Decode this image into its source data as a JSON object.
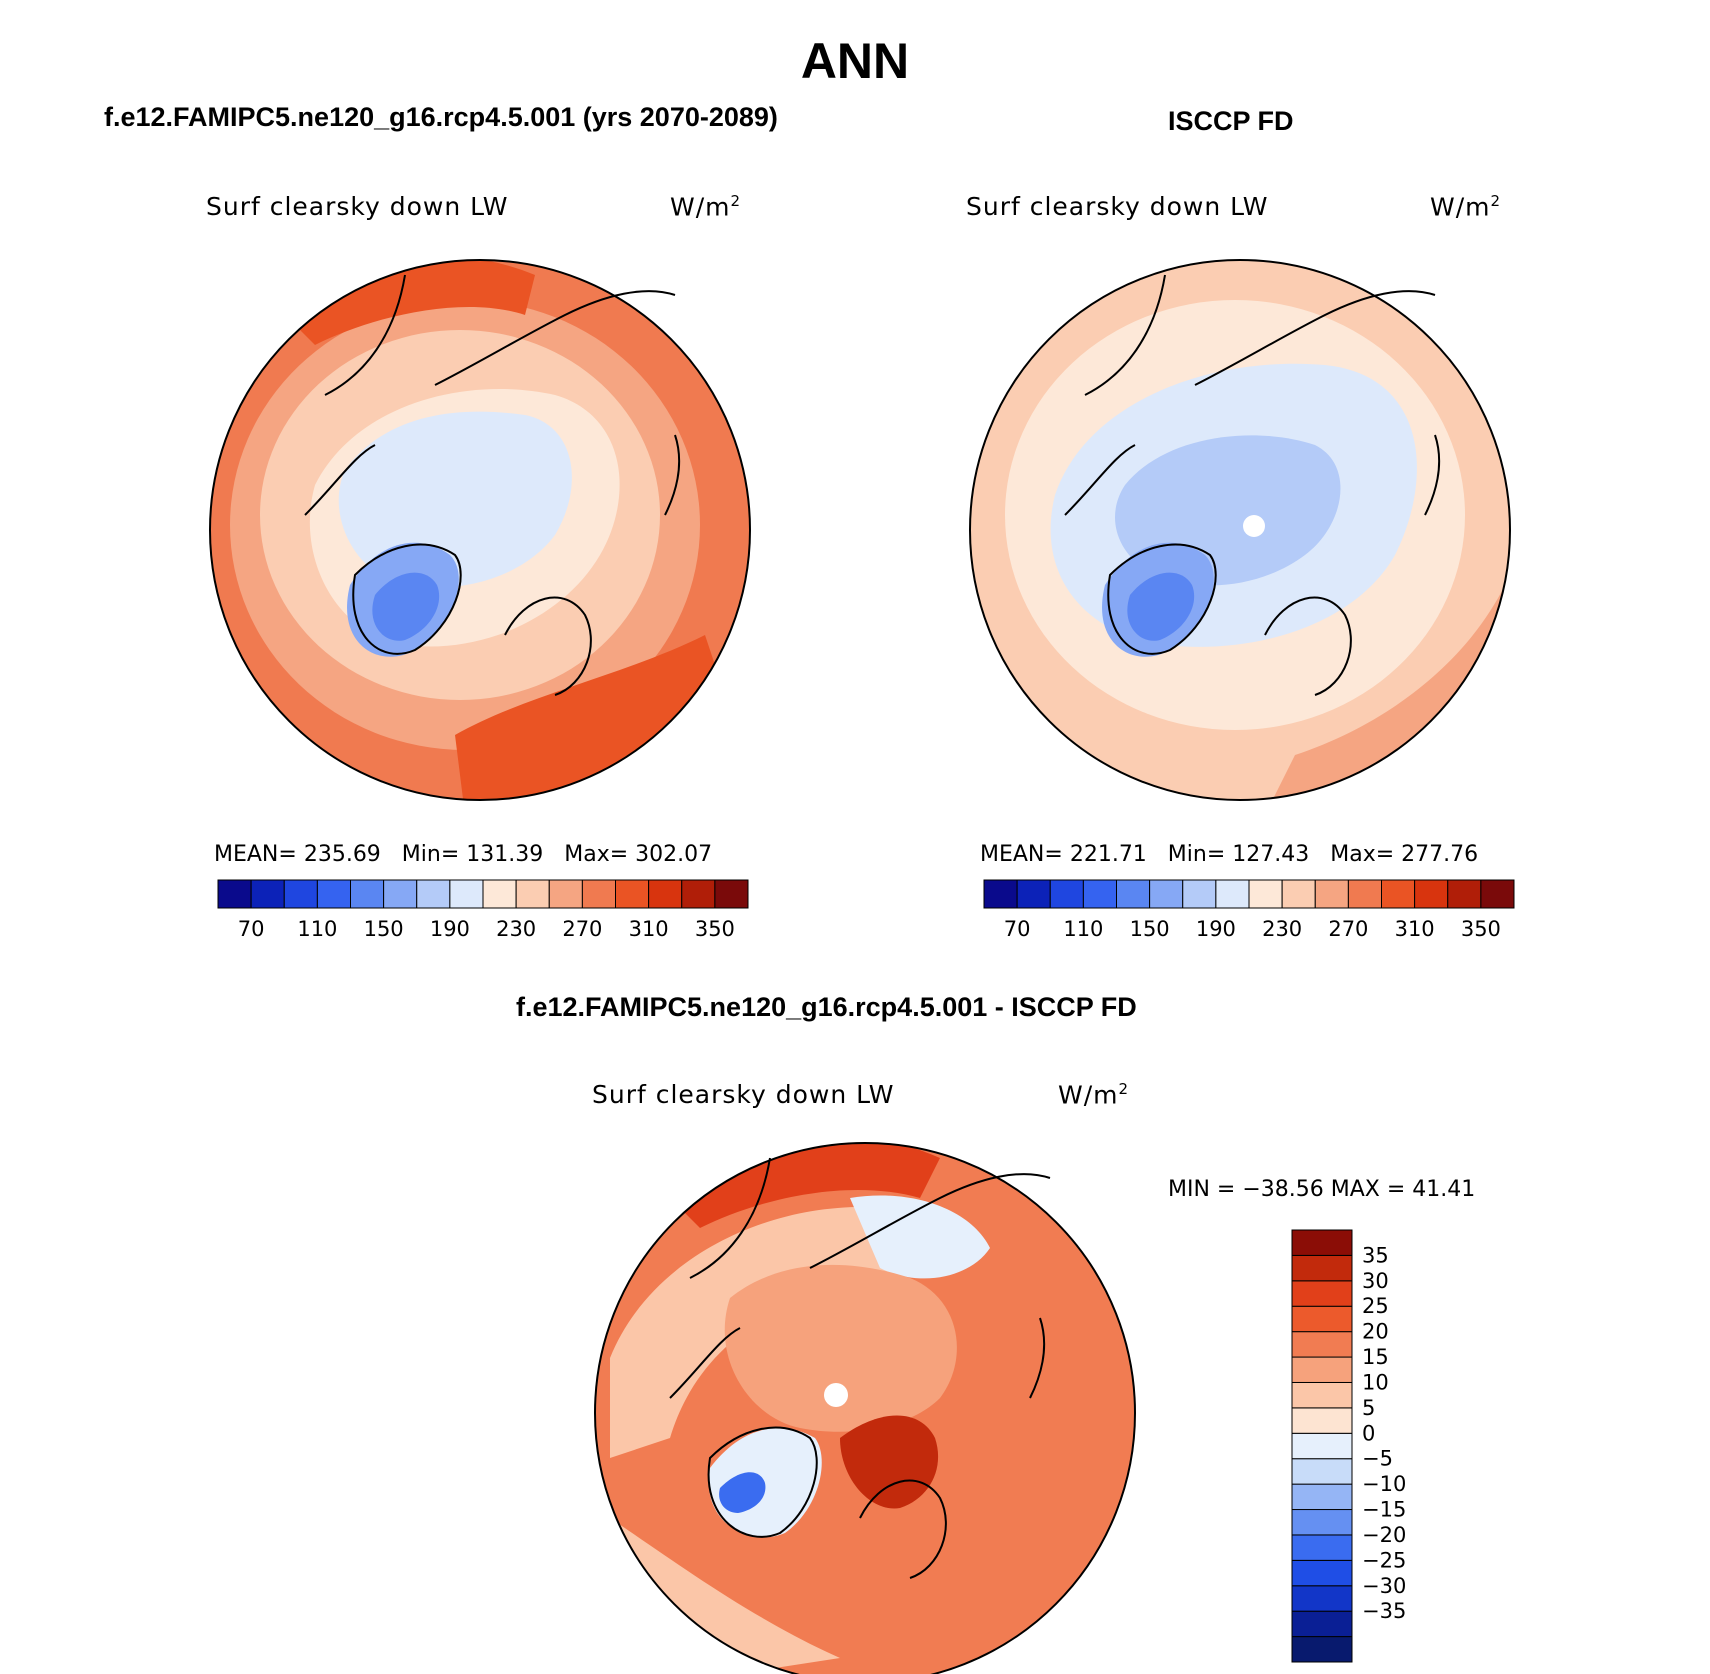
{
  "title": "ANN",
  "panels": [
    {
      "id": "model",
      "heading": "f.e12.FAMIPC5.ne120_g16.rcp4.5.001 (yrs 2070-2089)",
      "variable": "Surf clearsky down LW",
      "units_base": "W/m",
      "units_exp": "2",
      "mean_label": "MEAN=",
      "mean": "235.69",
      "min_label": "Min=",
      "min": "131.39",
      "max_label": "Max=",
      "max": "302.07"
    },
    {
      "id": "obs",
      "heading": "ISCCP FD",
      "variable": "Surf clearsky down LW",
      "units_base": "W/m",
      "units_exp": "2",
      "mean_label": "MEAN=",
      "mean": "221.71",
      "min_label": "Min=",
      "min": "127.43",
      "max_label": "Max=",
      "max": "277.76"
    }
  ],
  "diff_panel": {
    "heading": "f.e12.FAMIPC5.ne120_g16.rcp4.5.001 - ISCCP FD",
    "variable": "Surf clearsky down LW",
    "units_base": "W/m",
    "units_exp": "2",
    "minmax": "MIN = −38.56 MAX =  41.41"
  },
  "colors": {
    "abs_scale": [
      "#0a0a8c",
      "#0c22b8",
      "#1f46e0",
      "#3563f0",
      "#5a86f2",
      "#86a8f5",
      "#b4cbf8",
      "#dde9fb",
      "#fde8d8",
      "#fbcdb2",
      "#f5a582",
      "#f07a50",
      "#ea5424",
      "#d8340e",
      "#b01e08",
      "#7a0a0a"
    ],
    "diff_scale": [
      "#081a6e",
      "#0a1f95",
      "#1236c8",
      "#1f4ee6",
      "#3a6cf0",
      "#6590f2",
      "#95b5f5",
      "#c8dcf9",
      "#e6f0fc",
      "#fde4d2",
      "#fbc6a8",
      "#f6a27c",
      "#f17c52",
      "#ec5a2c",
      "#e1401a",
      "#c22a0c",
      "#8b0d06"
    ]
  },
  "chart_data": [
    {
      "type": "heatmap",
      "projection": "north-polar-stereographic",
      "title": "f.e12.FAMIPC5.ne120_g16.rcp4.5.001 (yrs 2070-2089)",
      "subtitle": "Surf clearsky down LW",
      "units": "W/m2",
      "mean": 235.69,
      "min": 131.39,
      "max": 302.07,
      "levels": [
        70,
        90,
        110,
        130,
        150,
        170,
        190,
        210,
        230,
        250,
        270,
        290,
        310,
        330,
        350
      ],
      "colorbar_labels": [
        "70",
        "110",
        "150",
        "190",
        "230",
        "270",
        "310",
        "350"
      ],
      "colorbar_orientation": "horizontal"
    },
    {
      "type": "heatmap",
      "projection": "north-polar-stereographic",
      "title": "ISCCP FD",
      "subtitle": "Surf clearsky down LW",
      "units": "W/m2",
      "mean": 221.71,
      "min": 127.43,
      "max": 277.76,
      "levels": [
        70,
        90,
        110,
        130,
        150,
        170,
        190,
        210,
        230,
        250,
        270,
        290,
        310,
        330,
        350
      ],
      "colorbar_labels": [
        "70",
        "110",
        "150",
        "190",
        "230",
        "270",
        "310",
        "350"
      ],
      "colorbar_orientation": "horizontal"
    },
    {
      "type": "heatmap",
      "projection": "north-polar-stereographic",
      "title": "f.e12.FAMIPC5.ne120_g16.rcp4.5.001 - ISCCP FD",
      "subtitle": "Surf clearsky down LW",
      "units": "W/m2",
      "min": -38.56,
      "max": 41.41,
      "levels": [
        -35,
        -30,
        -25,
        -20,
        -15,
        -10,
        -5,
        0,
        5,
        10,
        15,
        20,
        25,
        30,
        35
      ],
      "colorbar_labels": [
        "35",
        "30",
        "25",
        "20",
        "15",
        "10",
        "5",
        "0",
        "−5",
        "−10",
        "−15",
        "−20",
        "−25",
        "−30",
        "−35"
      ],
      "colorbar_orientation": "vertical"
    }
  ]
}
